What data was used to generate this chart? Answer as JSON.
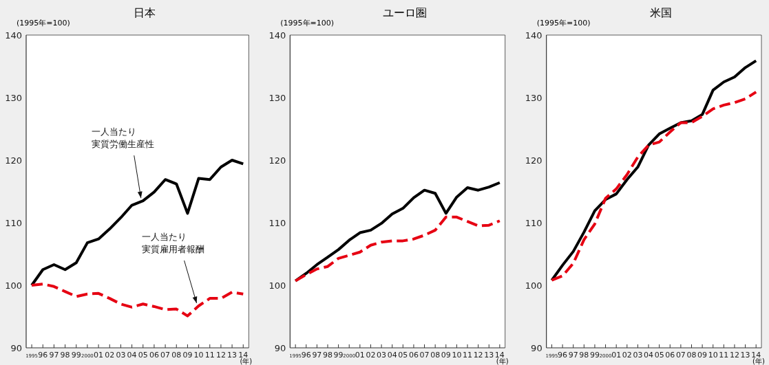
{
  "chart_data": [
    {
      "type": "line",
      "title": "日本",
      "ylabel": "(1995年=100)",
      "xlabel": "(年)",
      "categories": [
        "1995",
        "96",
        "97",
        "98",
        "99",
        "2000",
        "01",
        "02",
        "03",
        "04",
        "05",
        "06",
        "07",
        "08",
        "09",
        "10",
        "11",
        "12",
        "13",
        "14"
      ],
      "ylim": [
        90,
        140
      ],
      "yticks": [
        90,
        100,
        110,
        120,
        130,
        140
      ],
      "grid": false,
      "series": [
        {
          "color": "#000000",
          "line_style": "solid",
          "values": [
            100,
            102.5,
            103.3,
            102.5,
            103.6,
            106.8,
            107.4,
            109,
            110.8,
            112.8,
            113.5,
            114.9,
            116.9,
            116.2,
            111.5,
            117.1,
            116.9,
            118.9,
            120,
            119.4
          ]
        },
        {
          "color": "#e60012",
          "line_style": "dashed",
          "values": [
            100,
            100.2,
            99.8,
            99,
            98.2,
            98.6,
            98.7,
            97.9,
            97,
            96.5,
            97,
            96.6,
            96.1,
            96.2,
            95.1,
            96.7,
            97.9,
            97.9,
            98.9,
            98.6
          ]
        }
      ],
      "annotations": [
        {
          "text": "一人当たり実質労働生産性",
          "x": "05",
          "y": 113.5
        },
        {
          "text": "一人当たり実質雇用者報酬",
          "x": "10",
          "y": 96.7
        }
      ]
    },
    {
      "type": "line",
      "title": "ユーロ圏",
      "ylabel": "(1995年=100)",
      "xlabel": "(年)",
      "categories": [
        "1995",
        "96",
        "97",
        "98",
        "99",
        "2000",
        "01",
        "02",
        "03",
        "04",
        "05",
        "06",
        "07",
        "08",
        "09",
        "10",
        "11",
        "12",
        "13",
        "14"
      ],
      "ylim": [
        90,
        140
      ],
      "yticks": [
        90,
        100,
        110,
        120,
        130,
        140
      ],
      "grid": false,
      "series": [
        {
          "color": "#000000",
          "line_style": "solid",
          "values": [
            100.7,
            101.9,
            103.3,
            104.5,
            105.7,
            107.2,
            108.4,
            108.8,
            109.9,
            111.4,
            112.3,
            114,
            115.2,
            114.7,
            111.5,
            114.1,
            115.6,
            115.2,
            115.7,
            116.4
          ]
        },
        {
          "color": "#e60012",
          "line_style": "dashed",
          "values": [
            100.7,
            101.7,
            102.6,
            103,
            104.3,
            104.8,
            105.3,
            106.4,
            106.9,
            107.1,
            107.1,
            107.4,
            108,
            108.8,
            110.9,
            110.9,
            110.2,
            109.5,
            109.6,
            110.3
          ]
        }
      ]
    },
    {
      "type": "line",
      "title": "米国",
      "ylabel": "(1995年=100)",
      "xlabel": "(年)",
      "categories": [
        "1995",
        "96",
        "97",
        "98",
        "99",
        "2000",
        "01",
        "02",
        "03",
        "04",
        "05",
        "06",
        "07",
        "08",
        "09",
        "10",
        "11",
        "12",
        "13",
        "14"
      ],
      "ylim": [
        90,
        140
      ],
      "yticks": [
        90,
        100,
        110,
        120,
        130,
        140
      ],
      "grid": false,
      "series": [
        {
          "color": "#000000",
          "line_style": "solid",
          "values": [
            100.8,
            103.2,
            105.4,
            108.5,
            111.9,
            113.7,
            114.6,
            116.9,
            118.9,
            122.4,
            124.2,
            125.1,
            126,
            126.3,
            127.3,
            131.2,
            132.5,
            133.3,
            134.8,
            135.9
          ]
        },
        {
          "color": "#e60012",
          "line_style": "dashed",
          "values": [
            100.8,
            101.5,
            103.5,
            107.3,
            109.8,
            113.9,
            115.4,
            117.7,
            120.5,
            122.4,
            122.9,
            124.5,
            126,
            126,
            127,
            128.2,
            128.8,
            129.2,
            129.8,
            130.9
          ]
        }
      ]
    }
  ]
}
